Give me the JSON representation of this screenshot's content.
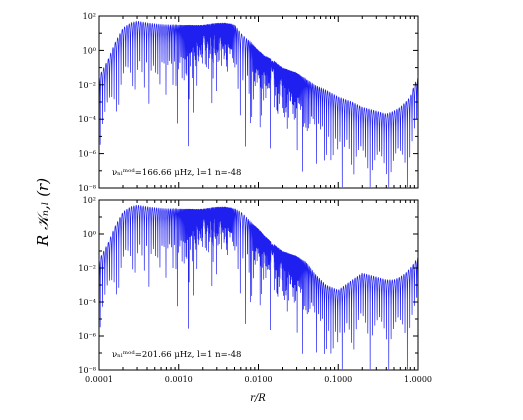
{
  "chart_data": [
    {
      "type": "line",
      "log_x": true,
      "log_y": true,
      "xlim": [
        0.0001,
        1.0
      ],
      "ylim": [
        1e-08,
        100
      ],
      "y_ticks": [
        "10²",
        "10⁰",
        "10⁻²",
        "10⁻⁴",
        "10⁻⁶",
        "10⁻⁸"
      ],
      "annotation": "νₙₗᵐᵒᵈ=166.66 μHz, l=1 n=-48",
      "series": [
        {
          "color": "#1f1ff0",
          "x": [
            0.0001,
            0.00013,
            0.00016,
            0.0002,
            0.00025,
            0.0003,
            0.0004,
            0.0005,
            0.0007,
            0.001,
            0.0015,
            0.002,
            0.003,
            0.004,
            0.005,
            0.006,
            0.007,
            0.008,
            0.01,
            0.012,
            0.015,
            0.02,
            0.03,
            0.04,
            0.05,
            0.07,
            0.1,
            0.15,
            0.2,
            0.3,
            0.4,
            0.5,
            0.6,
            0.7,
            0.8,
            0.9,
            1.0
          ],
          "y": [
            0.03,
            0.3,
            3,
            20,
            40,
            50,
            40,
            35,
            30,
            30,
            30,
            30,
            40,
            40,
            30,
            10,
            5,
            3,
            1,
            0.5,
            0.3,
            0.1,
            0.05,
            0.02,
            0.01,
            0.005,
            0.002,
            0.001,
            0.0005,
            0.0003,
            0.0002,
            0.0003,
            0.0005,
            0.001,
            0.002,
            0.01,
            0.03
          ]
        }
      ]
    },
    {
      "type": "line",
      "log_x": true,
      "log_y": true,
      "xlim": [
        0.0001,
        1.0
      ],
      "ylim": [
        1e-08,
        100
      ],
      "y_ticks": [
        "10²",
        "10⁰",
        "10⁻²",
        "10⁻⁴",
        "10⁻⁶",
        "10⁻⁸"
      ],
      "x_ticks": [
        "0.0001",
        "0.0010",
        "0.0100",
        "0.1000",
        "1.0000"
      ],
      "annotation": "νₙₗᵐᵒᵈ=201.66 μHz, l=1 n=-48",
      "xlabel": "r/R",
      "series": [
        {
          "color": "#1f1ff0",
          "x": [
            0.0001,
            0.00013,
            0.00016,
            0.0002,
            0.00025,
            0.0003,
            0.0004,
            0.0005,
            0.0007,
            0.001,
            0.0015,
            0.002,
            0.003,
            0.004,
            0.005,
            0.006,
            0.007,
            0.008,
            0.01,
            0.012,
            0.015,
            0.02,
            0.03,
            0.04,
            0.05,
            0.07,
            0.1,
            0.15,
            0.2,
            0.3,
            0.4,
            0.5,
            0.6,
            0.7,
            0.8,
            0.9,
            1.0
          ],
          "y": [
            0.03,
            0.3,
            3,
            20,
            40,
            50,
            40,
            35,
            30,
            30,
            30,
            30,
            40,
            40,
            30,
            20,
            10,
            5,
            2,
            0.8,
            0.3,
            0.1,
            0.05,
            0.02,
            0.005,
            0.001,
            0.0005,
            0.002,
            0.005,
            0.003,
            0.002,
            0.002,
            0.003,
            0.005,
            0.01,
            0.02,
            0.05
          ]
        }
      ]
    }
  ],
  "shared_ylabel": "R 𝒦ₙ,ₗ (r)"
}
